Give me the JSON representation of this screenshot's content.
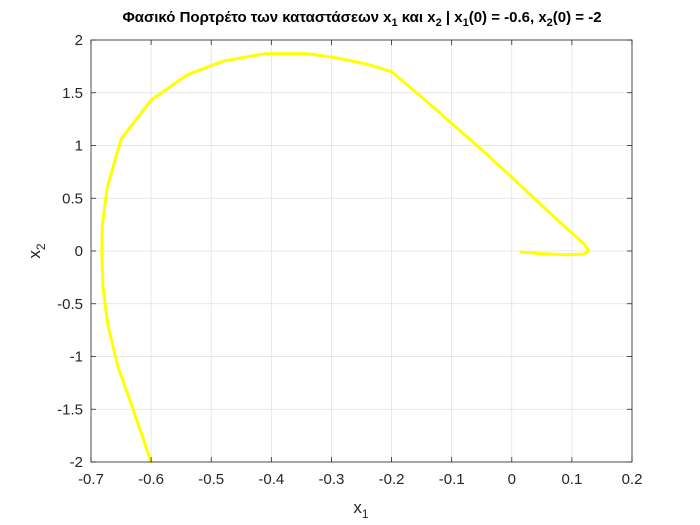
{
  "chart_data": {
    "type": "line",
    "title": {
      "t1": "Φασικό Πορτρέτο των καταστάσεων x",
      "s1": "1",
      "t2": " και x",
      "s2": "2",
      "t3": " | x",
      "s3": "1",
      "t4": "(0) = -0.6, x",
      "s4": "2",
      "t5": "(0) = -2"
    },
    "xlabel": {
      "base": "x",
      "sub": "1"
    },
    "ylabel": {
      "base": "x",
      "sub": "2"
    },
    "xlim": [
      -0.7,
      0.2
    ],
    "ylim": [
      -2,
      2
    ],
    "xticks": [
      -0.7,
      -0.6,
      -0.5,
      -0.4,
      -0.3,
      -0.2,
      -0.1,
      0,
      0.1,
      0.2
    ],
    "xtick_labels": [
      "-0.7",
      "-0.6",
      "-0.5",
      "-0.4",
      "-0.3",
      "-0.2",
      "-0.1",
      "0",
      "0.1",
      "0.2"
    ],
    "yticks": [
      -2,
      -1.5,
      -1,
      -0.5,
      0,
      0.5,
      1,
      1.5,
      2
    ],
    "ytick_labels": [
      "-2",
      "-1.5",
      "-1",
      "-0.5",
      "0",
      "0.5",
      "1",
      "1.5",
      "2"
    ],
    "grid": true,
    "line_color": "#ffff00",
    "series": [
      {
        "x": [
          -0.6,
          -0.63,
          -0.655,
          -0.672,
          -0.68,
          -0.682,
          -0.681,
          -0.673,
          -0.65,
          -0.6,
          -0.54,
          -0.48,
          -0.41,
          -0.34,
          -0.29,
          -0.24,
          -0.2,
          -0.15,
          -0.1,
          -0.05,
          0.0,
          0.05,
          0.1,
          0.12,
          0.128,
          0.12,
          0.09,
          0.05,
          0.015
        ],
        "y": [
          -2.0,
          -1.5,
          -1.1,
          -0.7,
          -0.35,
          0.0,
          0.25,
          0.6,
          1.06,
          1.43,
          1.67,
          1.8,
          1.87,
          1.87,
          1.83,
          1.77,
          1.7,
          1.46,
          1.21,
          0.96,
          0.7,
          0.43,
          0.17,
          0.07,
          0.0,
          -0.03,
          -0.035,
          -0.025,
          -0.01
        ]
      }
    ]
  }
}
